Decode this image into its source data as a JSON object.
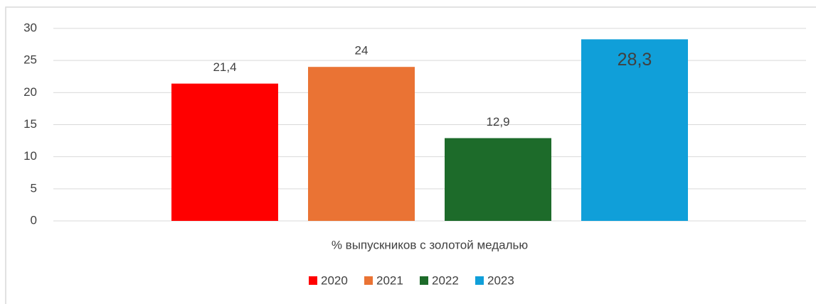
{
  "chart_data": {
    "type": "bar",
    "categories": [
      "% выпускников с золотой медалью"
    ],
    "series": [
      {
        "name": "2020",
        "color": "#ff0000",
        "values": [
          21.4
        ],
        "value_labels": [
          "21,4"
        ]
      },
      {
        "name": "2021",
        "color": "#ea7334",
        "values": [
          24
        ]
      },
      {
        "name": "2022",
        "color": "#1d6b2a",
        "values": [
          12.9
        ],
        "value_labels": [
          "12,9"
        ]
      },
      {
        "name": "2023",
        "color": "#109fd9",
        "values": [
          28.3
        ],
        "value_labels": [
          "28,3"
        ]
      }
    ],
    "ylim": [
      0,
      30
    ],
    "yticks": [
      0,
      5,
      10,
      15,
      20,
      25,
      30
    ],
    "grid": true,
    "legend": "bottom"
  }
}
